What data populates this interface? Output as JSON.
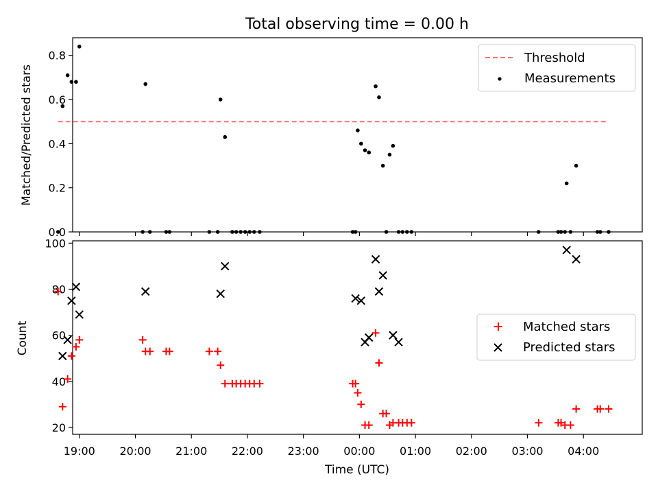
{
  "title": "Total observing time = 0.00 h",
  "xlabel": "Time (UTC)",
  "x_tick_labels": [
    "19:00",
    "20:00",
    "21:00",
    "22:00",
    "23:00",
    "00:00",
    "01:00",
    "02:00",
    "03:00",
    "04:00"
  ],
  "colors": {
    "threshold": "#ff7070",
    "measurements": "#000000",
    "matched": "#ff0000",
    "predicted": "#000000"
  },
  "chart_data": [
    {
      "type": "scatter",
      "ylabel": "Matched/Predicted stars",
      "x_unit": "hours since 18:00 UTC, axis spans 18:52 to 04:59 (next day)",
      "xlim": [
        0.88,
        11.05
      ],
      "ylim": [
        0,
        0.88
      ],
      "y_ticks": [
        "0.0",
        "0.2",
        "0.4",
        "0.6",
        "0.8"
      ],
      "legend_position": "top-right",
      "series": [
        {
          "name": "Threshold",
          "kind": "dashed-line",
          "x": [
            0.62,
            10.4
          ],
          "y": [
            0.5,
            0.5
          ]
        },
        {
          "name": "Measurements",
          "kind": "dot",
          "x": [
            0.62,
            0.7,
            0.79,
            0.86,
            0.94,
            1.0,
            2.13,
            2.18,
            2.26,
            2.55,
            2.61,
            3.32,
            3.47,
            3.52,
            3.6,
            3.73,
            3.8,
            3.88,
            3.96,
            4.04,
            4.12,
            4.22,
            5.88,
            5.93,
            5.97,
            6.03,
            6.1,
            6.17,
            6.29,
            6.35,
            6.42,
            6.48,
            6.54,
            6.6,
            6.7,
            6.77,
            6.85,
            6.93,
            9.2,
            9.55,
            9.6,
            9.67,
            9.7,
            9.77,
            9.87,
            10.25,
            10.3,
            10.45
          ],
          "y": [
            0,
            0.57,
            0.71,
            0.68,
            0.68,
            0.84,
            0,
            0.67,
            0,
            0,
            0,
            0,
            0,
            0.6,
            0.43,
            0,
            0,
            0,
            0,
            0,
            0,
            0,
            0,
            0,
            0.46,
            0.4,
            0.37,
            0.36,
            0.66,
            0.61,
            0.3,
            0,
            0.35,
            0.39,
            0,
            0,
            0,
            0,
            0,
            0,
            0,
            0,
            0.22,
            0,
            0.3,
            0,
            0,
            0
          ]
        }
      ]
    },
    {
      "type": "scatter",
      "ylabel": "Count",
      "xlim": [
        0.88,
        11.05
      ],
      "ylim": [
        17,
        101
      ],
      "y_ticks": [
        "20",
        "40",
        "60",
        "80",
        "100"
      ],
      "legend_position": "center-right",
      "series": [
        {
          "name": "Matched stars",
          "marker": "plus",
          "x": [
            0.62,
            0.7,
            0.79,
            0.86,
            0.94,
            1.0,
            2.13,
            2.18,
            2.26,
            2.55,
            2.61,
            3.32,
            3.47,
            3.52,
            3.6,
            3.73,
            3.8,
            3.88,
            3.96,
            4.04,
            4.12,
            4.22,
            5.88,
            5.93,
            5.97,
            6.03,
            6.1,
            6.17,
            6.29,
            6.35,
            6.42,
            6.48,
            6.54,
            6.6,
            6.7,
            6.77,
            6.85,
            6.93,
            9.2,
            9.55,
            9.6,
            9.67,
            9.77,
            9.87,
            10.25,
            10.3,
            10.45
          ],
          "y": [
            79,
            29,
            41,
            51,
            55,
            58,
            58,
            53,
            53,
            53,
            53,
            53,
            53,
            47,
            39,
            39,
            39,
            39,
            39,
            39,
            39,
            39,
            39,
            39,
            35,
            30,
            21,
            21,
            61,
            48,
            26,
            26,
            21,
            22,
            22,
            22,
            22,
            22,
            22,
            22,
            22,
            21,
            21,
            28,
            28,
            28,
            28
          ]
        },
        {
          "name": "Predicted stars",
          "marker": "x",
          "x": [
            0.7,
            0.79,
            0.86,
            0.94,
            1.0,
            2.18,
            3.52,
            3.6,
            5.93,
            6.03,
            6.1,
            6.17,
            6.29,
            6.35,
            6.42,
            6.6,
            6.7,
            9.7,
            9.87
          ],
          "y": [
            51,
            58,
            75,
            81,
            69,
            79,
            78,
            90,
            76,
            75,
            57,
            59,
            93,
            79,
            86,
            60,
            57,
            97,
            93
          ]
        }
      ]
    }
  ]
}
